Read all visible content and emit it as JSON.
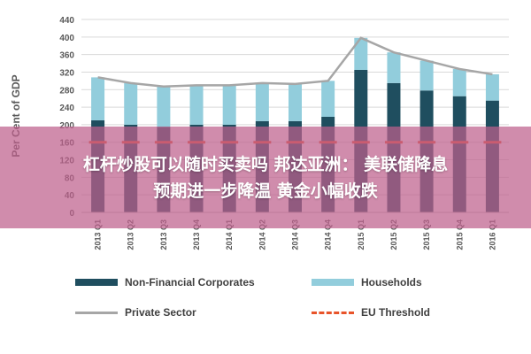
{
  "chart_data": {
    "type": "bar",
    "stacked": true,
    "ylabel": "Per Cent of GDP",
    "ylim": [
      0,
      440
    ],
    "yticks": [
      0,
      40,
      80,
      120,
      160,
      200,
      240,
      280,
      320,
      360,
      400,
      440
    ],
    "grid": true,
    "categories": [
      "2013 Q1",
      "2013 Q2",
      "2013 Q3",
      "2013 Q4",
      "2014 Q1",
      "2014 Q2",
      "2014 Q3",
      "2014 Q4",
      "2015 Q1",
      "2015 Q2",
      "2015 Q3",
      "2015 Q4",
      "2016 Q1"
    ],
    "series": [
      {
        "name": "Non-Financial Corporates",
        "kind": "bar",
        "color": "#1f4e5f",
        "values": [
          210,
          200,
          195,
          200,
          200,
          208,
          208,
          218,
          325,
          295,
          278,
          265,
          255
        ]
      },
      {
        "name": "Households",
        "kind": "bar",
        "color": "#92cddc",
        "values": [
          98,
          95,
          92,
          90,
          90,
          87,
          85,
          82,
          73,
          70,
          68,
          62,
          60
        ]
      },
      {
        "name": "Private Sector",
        "kind": "line",
        "color": "#a6a6a6",
        "values": [
          308,
          295,
          287,
          290,
          290,
          295,
          293,
          300,
          398,
          365,
          346,
          327,
          315
        ]
      },
      {
        "name": "EU Threshold",
        "kind": "dashed",
        "color": "#e8542a",
        "values": [
          160,
          160,
          160,
          160,
          160,
          160,
          160,
          160,
          160,
          160,
          160,
          160,
          160
        ]
      }
    ],
    "legend_position": "bottom"
  },
  "overlay": {
    "line1": "杠杆炒股可以随时买卖吗 邦达亚洲： 美联储降息",
    "line2": "预期进一步降温 黄金小幅收跌"
  }
}
